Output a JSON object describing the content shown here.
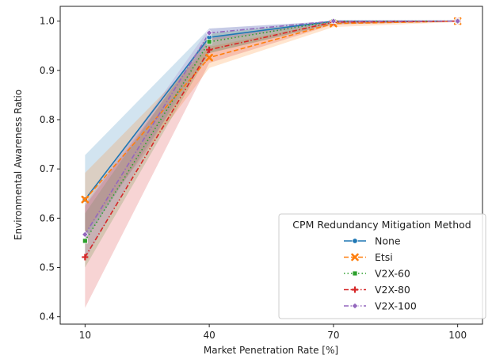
{
  "chart_data": {
    "type": "line",
    "xlabel": "Market Penetration Rate [%]",
    "ylabel": "Environmental Awareness Ratio",
    "x": [
      10,
      40,
      70,
      100
    ],
    "x_ticks": [
      "10",
      "40",
      "70",
      "100"
    ],
    "xlim": [
      4,
      106
    ],
    "ylim": [
      0.385,
      1.03
    ],
    "y_ticks": [
      0.4,
      0.5,
      0.6,
      0.7,
      0.8,
      0.9,
      1.0
    ],
    "y_tick_labels": [
      "0.4",
      "0.5",
      "0.6",
      "0.7",
      "0.8",
      "0.9",
      "1.0"
    ],
    "grid": false,
    "legend": {
      "title": "CPM Redundancy Mitigation Method",
      "placement": "lower-right"
    },
    "series": [
      {
        "name": "None",
        "color": "#1f77b4",
        "dash": "solid",
        "marker": "circle",
        "values": [
          0.638,
          0.967,
          1.0,
          1.0
        ],
        "ci_low": [
          0.555,
          0.935,
          0.994,
          0.999
        ],
        "ci_high": [
          0.728,
          0.985,
          1.0,
          1.0
        ]
      },
      {
        "name": "Etsi",
        "color": "#ff7f0e",
        "dash": "dashed",
        "marker": "x",
        "values": [
          0.638,
          0.926,
          0.995,
          1.0
        ],
        "ci_low": [
          0.57,
          0.905,
          0.988,
          0.998
        ],
        "ci_high": [
          0.692,
          0.948,
          0.999,
          1.0
        ]
      },
      {
        "name": "V2X-60",
        "color": "#2ca02c",
        "dash": "dotted",
        "marker": "square",
        "values": [
          0.554,
          0.958,
          1.0,
          1.0
        ],
        "ci_low": [
          0.5,
          0.935,
          0.995,
          0.999
        ],
        "ci_high": [
          0.61,
          0.975,
          1.0,
          1.0
        ]
      },
      {
        "name": "V2X-80",
        "color": "#d62728",
        "dash": "dashdot",
        "marker": "plus",
        "values": [
          0.521,
          0.942,
          0.998,
          1.0
        ],
        "ci_low": [
          0.418,
          0.915,
          0.993,
          0.999
        ],
        "ci_high": [
          0.625,
          0.965,
          1.0,
          1.0
        ]
      },
      {
        "name": "V2X-100",
        "color": "#9467bd",
        "dash": "dashdot",
        "marker": "diamond",
        "values": [
          0.567,
          0.976,
          1.0,
          1.0
        ],
        "ci_low": [
          0.515,
          0.96,
          0.996,
          0.999
        ],
        "ci_high": [
          0.628,
          0.985,
          1.0,
          1.0
        ]
      }
    ]
  }
}
